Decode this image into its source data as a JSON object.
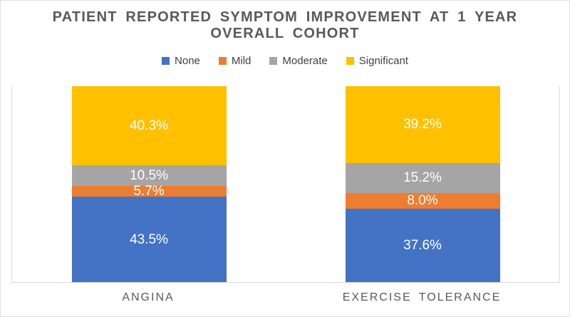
{
  "title": {
    "line1": "PATIENT REPORTED SYMPTOM IMPROVEMENT AT 1 YEAR",
    "line2": "OVERALL COHORT"
  },
  "chart_data": {
    "type": "bar",
    "stacked": true,
    "title": "PATIENT REPORTED SYMPTOM IMPROVEMENT AT 1 YEAR OVERALL COHORT",
    "categories": [
      "ANGINA",
      "EXERCISE TOLERANCE"
    ],
    "series": [
      {
        "name": "None",
        "color": "#4472C4",
        "values": [
          43.5,
          37.6
        ]
      },
      {
        "name": "Mild",
        "color": "#ED7D31",
        "values": [
          5.7,
          8.0
        ]
      },
      {
        "name": "Moderate",
        "color": "#A5A5A5",
        "values": [
          10.5,
          15.2
        ]
      },
      {
        "name": "Significant",
        "color": "#FFC000",
        "values": [
          40.3,
          39.2
        ]
      }
    ],
    "data_labels": {
      "ANGINA": [
        "43.5%",
        "5.7%",
        "10.5%",
        "40.3%"
      ],
      "EXERCISE TOLERANCE": [
        "37.6%",
        "8.0%",
        "15.2%",
        "39.2%"
      ]
    },
    "ylim": [
      0,
      100
    ],
    "unit": "%",
    "legend_position": "top",
    "grid": false,
    "axis_line_color": "#D9D9D9",
    "data_label_color": "#FFFFFF",
    "title_color": "#595959"
  }
}
